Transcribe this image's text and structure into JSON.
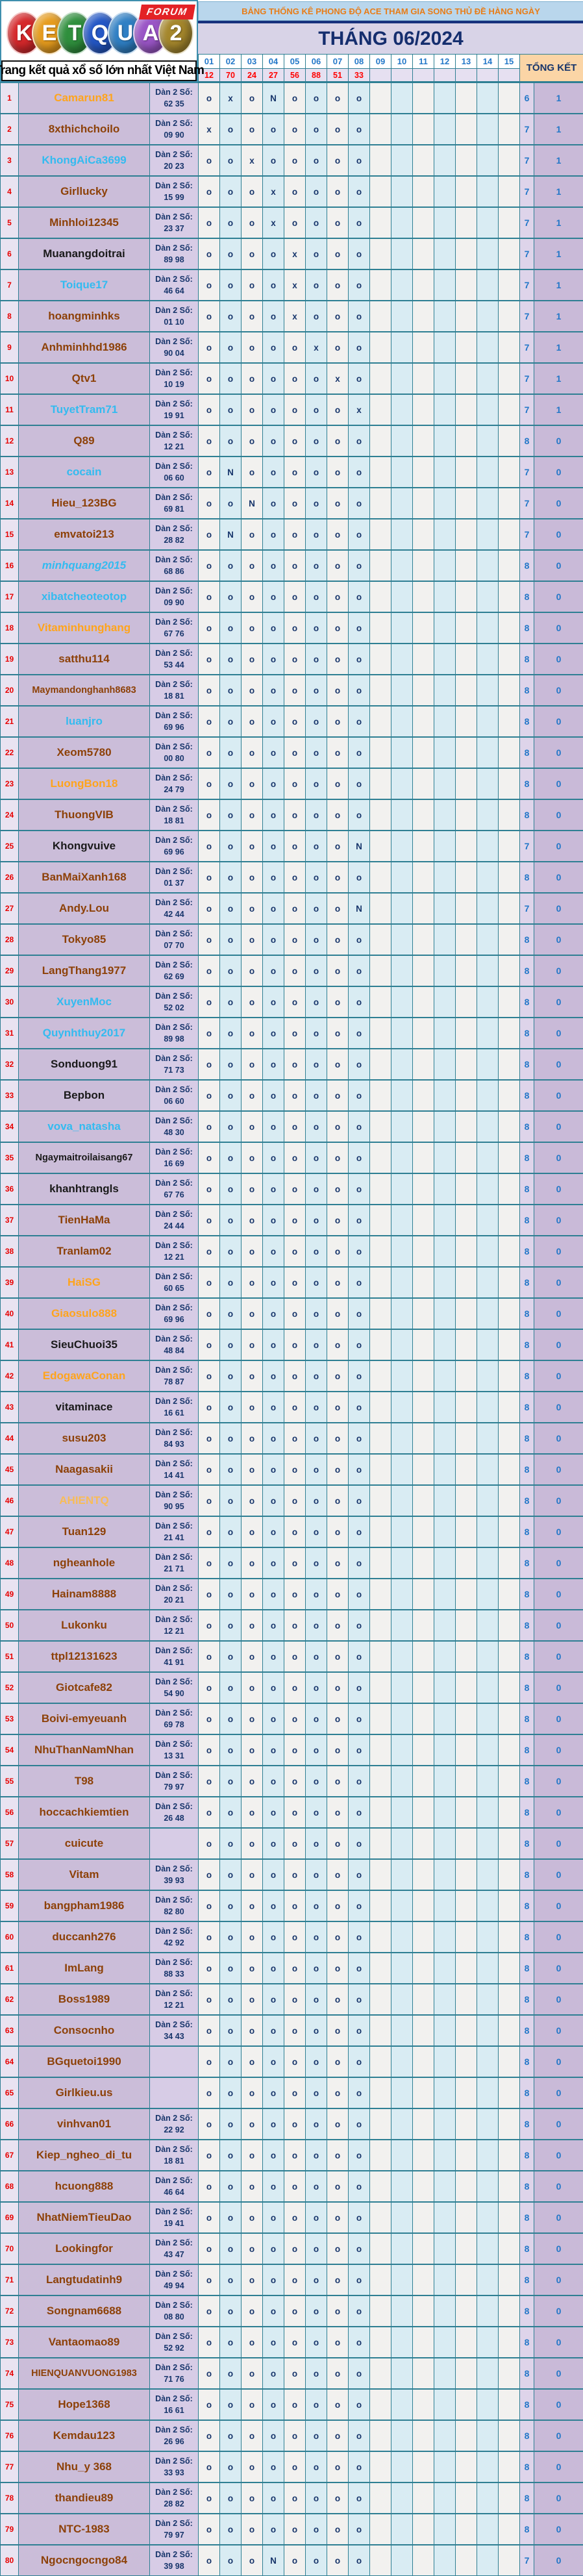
{
  "logo": {
    "letters": [
      {
        "ch": "K",
        "color": "#d5282b"
      },
      {
        "ch": "E",
        "color": "#e69c1e"
      },
      {
        "ch": "T",
        "color": "#2f8f3d"
      },
      {
        "ch": "Q",
        "color": "#2457c5"
      },
      {
        "ch": "U",
        "color": "#2f7fc4"
      },
      {
        "ch": "A",
        "color": "#9a55c6"
      },
      {
        "ch": "2",
        "color": "#a5872c"
      }
    ],
    "badge": "FORUM",
    "tagline": "Trang kết quả xổ số lớn nhất Việt Nam"
  },
  "header": {
    "title": "BẢNG THỐNG KÊ PHONG ĐỘ ACE THAM GIA SONG THỦ ĐỀ HÀNG NGÀY",
    "month": "THÁNG 06/2024",
    "days": [
      "01",
      "02",
      "03",
      "04",
      "05",
      "06",
      "07",
      "08",
      "09",
      "10",
      "11",
      "12",
      "13",
      "14",
      "15"
    ],
    "day_results": [
      "12",
      "70",
      "24",
      "27",
      "56",
      "88",
      "51",
      "33",
      "",
      "",
      "",
      "",
      "",
      "",
      ""
    ],
    "total_header": "TỔNG KẾT"
  },
  "dan_label": "Dàn 2 Số:",
  "colors": {
    "brown": "#8d4108",
    "orange": "#ffa41c",
    "gold": "#f8bc58",
    "cyan": "#33bbf0",
    "black": "#1a1a1a",
    "mark": "#17356b",
    "accent_teal_border": "#2e7f93",
    "total_blue": "#2377c8",
    "result_red": "#ff0000",
    "title_orange": "#e87d18",
    "navy": "#152e6e"
  },
  "rows": [
    {
      "n": 1,
      "user": "Camarun81",
      "color": "orange",
      "dan": "62 35",
      "marks": "oxoNoooo",
      "to": "6",
      "tx": "1"
    },
    {
      "n": 2,
      "user": "8xthichchoilo",
      "color": "brown",
      "dan": "09 90",
      "marks": "xooooooo",
      "to": "7",
      "tx": "1"
    },
    {
      "n": 3,
      "user": "KhongAiCa3699",
      "color": "cyan",
      "dan": "20 23",
      "marks": "ooxooooo",
      "to": "7",
      "tx": "1"
    },
    {
      "n": 4,
      "user": "Girllucky",
      "color": "brown",
      "dan": "15 99",
      "marks": "oooxoooo",
      "to": "7",
      "tx": "1"
    },
    {
      "n": 5,
      "user": "Minhloi12345",
      "color": "brown",
      "dan": "23 37",
      "marks": "oooxoooo",
      "to": "7",
      "tx": "1"
    },
    {
      "n": 6,
      "user": "Muanangdoitrai",
      "color": "black",
      "dan": "89 98",
      "marks": "ooooxooo",
      "to": "7",
      "tx": "1"
    },
    {
      "n": 7,
      "user": "Toique17",
      "color": "cyan",
      "dan": "46 64",
      "marks": "ooooxooo",
      "to": "7",
      "tx": "1"
    },
    {
      "n": 8,
      "user": "hoangminhks",
      "color": "brown",
      "dan": "01 10",
      "marks": "ooooxooo",
      "to": "7",
      "tx": "1"
    },
    {
      "n": 9,
      "user": "Anhminhhd1986",
      "color": "brown",
      "dan": "90 04",
      "marks": "oooooxoo",
      "to": "7",
      "tx": "1"
    },
    {
      "n": 10,
      "user": "Qtv1",
      "color": "brown",
      "dan": "10 19",
      "marks": "ooooooxo",
      "to": "7",
      "tx": "1"
    },
    {
      "n": 11,
      "user": "TuyetTram71",
      "color": "cyan",
      "dan": "19 91",
      "marks": "ooooooox",
      "to": "7",
      "tx": "1"
    },
    {
      "n": 12,
      "user": "Q89",
      "color": "brown",
      "dan": "12 21",
      "marks": "oooooooo",
      "to": "8",
      "tx": "0"
    },
    {
      "n": 13,
      "user": "cocain",
      "color": "cyan",
      "dan": "06 60",
      "marks": "oNoooooo",
      "to": "7",
      "tx": "0"
    },
    {
      "n": 14,
      "user": "Hieu_123BG",
      "color": "brown",
      "dan": "69 81",
      "marks": "ooNooooo",
      "to": "7",
      "tx": "0"
    },
    {
      "n": 15,
      "user": "emvatoi213",
      "color": "brown",
      "dan": "28 82",
      "marks": "oNoooooo",
      "to": "7",
      "tx": "0"
    },
    {
      "n": 16,
      "user": "minhquang2015",
      "color": "cyan",
      "italic": true,
      "dan": "68 86",
      "marks": "oooooooo",
      "to": "8",
      "tx": "0"
    },
    {
      "n": 17,
      "user": "xibatcheoteotop",
      "color": "cyan",
      "dan": "09 90",
      "marks": "oooooooo",
      "to": "8",
      "tx": "0"
    },
    {
      "n": 18,
      "user": "Vitaminhunghang",
      "color": "orange",
      "dan": "67 76",
      "marks": "oooooooo",
      "to": "8",
      "tx": "0"
    },
    {
      "n": 19,
      "user": "satthu114",
      "color": "brown",
      "dan": "53 44",
      "marks": "oooooooo",
      "to": "8",
      "tx": "0"
    },
    {
      "n": 20,
      "user": "Maymandonghanh8683",
      "color": "brown",
      "dan": "18 81",
      "marks": "oooooooo",
      "to": "8",
      "tx": "0"
    },
    {
      "n": 21,
      "user": "luanjro",
      "color": "cyan",
      "dan": "69 96",
      "marks": "oooooooo",
      "to": "8",
      "tx": "0"
    },
    {
      "n": 22,
      "user": "Xeom5780",
      "color": "brown",
      "dan": "00 80",
      "marks": "oooooooo",
      "to": "8",
      "tx": "0"
    },
    {
      "n": 23,
      "user": "LuongBon18",
      "color": "orange",
      "dan": "24 79",
      "marks": "oooooooo",
      "to": "8",
      "tx": "0"
    },
    {
      "n": 24,
      "user": "ThuongVIB",
      "color": "brown",
      "dan": "18 81",
      "marks": "oooooooo",
      "to": "8",
      "tx": "0"
    },
    {
      "n": 25,
      "user": "Khongvuive",
      "color": "black",
      "dan": "69 96",
      "marks": "oooooooN",
      "to": "7",
      "tx": "0"
    },
    {
      "n": 26,
      "user": "BanMaiXanh168",
      "color": "brown",
      "dan": "01 37",
      "marks": "oooooooo",
      "to": "8",
      "tx": "0"
    },
    {
      "n": 27,
      "user": "Andy.Lou",
      "color": "brown",
      "dan": "42 44",
      "marks": "oooooooN",
      "to": "7",
      "tx": "0"
    },
    {
      "n": 28,
      "user": "Tokyo85",
      "color": "brown",
      "dan": "07 70",
      "marks": "oooooooo",
      "to": "8",
      "tx": "0"
    },
    {
      "n": 29,
      "user": "LangThang1977",
      "color": "brown",
      "dan": "62 69",
      "marks": "oooooooo",
      "to": "8",
      "tx": "0"
    },
    {
      "n": 30,
      "user": "XuyenMoc",
      "color": "cyan",
      "dan": "52 02",
      "marks": "oooooooo",
      "to": "8",
      "tx": "0"
    },
    {
      "n": 31,
      "user": "Quynhthuy2017",
      "color": "cyan",
      "dan": "89 98",
      "marks": "oooooooo",
      "to": "8",
      "tx": "0"
    },
    {
      "n": 32,
      "user": "Sonduong91",
      "color": "black",
      "dan": "71 73",
      "marks": "oooooooo",
      "to": "8",
      "tx": "0"
    },
    {
      "n": 33,
      "user": "Bepbon",
      "color": "black",
      "dan": "06 60",
      "marks": "oooooooo",
      "to": "8",
      "tx": "0"
    },
    {
      "n": 34,
      "user": "vova_natasha",
      "color": "cyan",
      "dan": "48 30",
      "marks": "oooooooo",
      "to": "8",
      "tx": "0"
    },
    {
      "n": 35,
      "user": "Ngaymaitroilaisang67",
      "color": "black",
      "dan": "16 69",
      "marks": "oooooooo",
      "to": "8",
      "tx": "0"
    },
    {
      "n": 36,
      "user": "khanhtrangls",
      "color": "black",
      "dan": "67 76",
      "marks": "oooooooo",
      "to": "8",
      "tx": "0"
    },
    {
      "n": 37,
      "user": "TienHaMa",
      "color": "brown",
      "dan": "24 44",
      "marks": "oooooooo",
      "to": "8",
      "tx": "0"
    },
    {
      "n": 38,
      "user": "Tranlam02",
      "color": "brown",
      "dan": "12 21",
      "marks": "oooooooo",
      "to": "8",
      "tx": "0"
    },
    {
      "n": 39,
      "user": "HaiSG",
      "color": "orange",
      "dan": "60 65",
      "marks": "oooooooo",
      "to": "8",
      "tx": "0"
    },
    {
      "n": 40,
      "user": "Giaosulo888",
      "color": "orange",
      "dan": "69 96",
      "marks": "oooooooo",
      "to": "8",
      "tx": "0"
    },
    {
      "n": 41,
      "user": "SieuChuoi35",
      "color": "black",
      "dan": "48 84",
      "marks": "oooooooo",
      "to": "8",
      "tx": "0"
    },
    {
      "n": 42,
      "user": "EdogawaConan",
      "color": "orange",
      "dan": "78 87",
      "marks": "oooooooo",
      "to": "8",
      "tx": "0"
    },
    {
      "n": 43,
      "user": "vitaminace",
      "color": "black",
      "dan": "16 61",
      "marks": "oooooooo",
      "to": "8",
      "tx": "0"
    },
    {
      "n": 44,
      "user": "susu203",
      "color": "brown",
      "dan": "84 93",
      "marks": "oooooooo",
      "to": "8",
      "tx": "0"
    },
    {
      "n": 45,
      "user": "Naagasakii",
      "color": "brown",
      "dan": "14 41",
      "marks": "oooooooo",
      "to": "8",
      "tx": "0"
    },
    {
      "n": 46,
      "user": "AHIENTQ",
      "color": "gold",
      "dan": "90 95",
      "marks": "oooooooo",
      "to": "8",
      "tx": "0"
    },
    {
      "n": 47,
      "user": "Tuan129",
      "color": "brown",
      "dan": "21 41",
      "marks": "oooooooo",
      "to": "8",
      "tx": "0"
    },
    {
      "n": 48,
      "user": "ngheanhole",
      "color": "brown",
      "dan": "21 71",
      "marks": "oooooooo",
      "to": "8",
      "tx": "0"
    },
    {
      "n": 49,
      "user": "Hainam8888",
      "color": "brown",
      "dan": "20 21",
      "marks": "oooooooo",
      "to": "8",
      "tx": "0"
    },
    {
      "n": 50,
      "user": "Lukonku",
      "color": "brown",
      "dan": "12 21",
      "marks": "oooooooo",
      "to": "8",
      "tx": "0"
    },
    {
      "n": 51,
      "user": "ttpl12131623",
      "color": "brown",
      "dan": "41 91",
      "marks": "oooooooo",
      "to": "8",
      "tx": "0"
    },
    {
      "n": 52,
      "user": "Giotcafe82",
      "color": "brown",
      "dan": "54 90",
      "marks": "oooooooo",
      "to": "8",
      "tx": "0"
    },
    {
      "n": 53,
      "user": "Boivi-emyeuanh",
      "color": "brown",
      "dan": "69 78",
      "marks": "oooooooo",
      "to": "8",
      "tx": "0"
    },
    {
      "n": 54,
      "user": "NhuThanNamNhan",
      "color": "brown",
      "dan": "13 31",
      "marks": "oooooooo",
      "to": "8",
      "tx": "0"
    },
    {
      "n": 55,
      "user": "T98",
      "color": "brown",
      "dan": "79 97",
      "marks": "oooooooo",
      "to": "8",
      "tx": "0"
    },
    {
      "n": 56,
      "user": "hoccachkiemtien",
      "color": "brown",
      "dan": "26 48",
      "marks": "oooooooo",
      "to": "8",
      "tx": "0"
    },
    {
      "n": 57,
      "user": "cuicute",
      "color": "brown",
      "dan": "",
      "marks": "oooooooo",
      "to": "8",
      "tx": "0"
    },
    {
      "n": 58,
      "user": "Vitam",
      "color": "brown",
      "dan": "39 93",
      "marks": "oooooooo",
      "to": "8",
      "tx": "0"
    },
    {
      "n": 59,
      "user": "bangpham1986",
      "color": "brown",
      "dan": "82 80",
      "marks": "oooooooo",
      "to": "8",
      "tx": "0"
    },
    {
      "n": 60,
      "user": "duccanh276",
      "color": "brown",
      "dan": "42 92",
      "marks": "oooooooo",
      "to": "8",
      "tx": "0"
    },
    {
      "n": 61,
      "user": "ImLang",
      "color": "brown",
      "dan": "88 33",
      "marks": "oooooooo",
      "to": "8",
      "tx": "0"
    },
    {
      "n": 62,
      "user": "Boss1989",
      "color": "brown",
      "dan": "12 21",
      "marks": "oooooooo",
      "to": "8",
      "tx": "0"
    },
    {
      "n": 63,
      "user": "Consocnho",
      "color": "brown",
      "dan": "34 43",
      "marks": "oooooooo",
      "to": "8",
      "tx": "0"
    },
    {
      "n": 64,
      "user": "BGquetoi1990",
      "color": "brown",
      "dan": "",
      "marks": "oooooooo",
      "to": "8",
      "tx": "0"
    },
    {
      "n": 65,
      "user": "Girlkieu.us",
      "color": "brown",
      "dan": "",
      "marks": "oooooooo",
      "to": "8",
      "tx": "0"
    },
    {
      "n": 66,
      "user": "vinhvan01",
      "color": "brown",
      "dan": "22 92",
      "marks": "oooooooo",
      "to": "8",
      "tx": "0"
    },
    {
      "n": 67,
      "user": "Kiep_ngheo_di_tu",
      "color": "brown",
      "dan": "18 81",
      "marks": "oooooooo",
      "to": "8",
      "tx": "0"
    },
    {
      "n": 68,
      "user": "hcuong888",
      "color": "brown",
      "dan": "46 64",
      "marks": "oooooooo",
      "to": "8",
      "tx": "0"
    },
    {
      "n": 69,
      "user": "NhatNiemTieuDao",
      "color": "brown",
      "dan": "19 41",
      "marks": "oooooooo",
      "to": "8",
      "tx": "0"
    },
    {
      "n": 70,
      "user": "Lookingfor",
      "color": "brown",
      "dan": "43 47",
      "marks": "oooooooo",
      "to": "8",
      "tx": "0"
    },
    {
      "n": 71,
      "user": "Langtudatinh9",
      "color": "brown",
      "dan": "49 94",
      "marks": "oooooooo",
      "to": "8",
      "tx": "0"
    },
    {
      "n": 72,
      "user": "Songnam6688",
      "color": "brown",
      "dan": "08 80",
      "marks": "oooooooo",
      "to": "8",
      "tx": "0"
    },
    {
      "n": 73,
      "user": "Vantaomao89",
      "color": "brown",
      "dan": "52 92",
      "marks": "oooooooo",
      "to": "8",
      "tx": "0"
    },
    {
      "n": 74,
      "user": "HIENQUANVUONG1983",
      "color": "brown",
      "dan": "71 76",
      "marks": "oooooooo",
      "to": "8",
      "tx": "0"
    },
    {
      "n": 75,
      "user": "Hope1368",
      "color": "brown",
      "dan": "16 61",
      "marks": "oooooooo",
      "to": "8",
      "tx": "0"
    },
    {
      "n": 76,
      "user": "Kemdau123",
      "color": "brown",
      "dan": "26 96",
      "marks": "oooooooo",
      "to": "8",
      "tx": "0"
    },
    {
      "n": 77,
      "user": "Nhu_y 368",
      "color": "brown",
      "dan": "33 93",
      "marks": "oooooooo",
      "to": "8",
      "tx": "0"
    },
    {
      "n": 78,
      "user": "thandieu89",
      "color": "brown",
      "dan": "28 82",
      "marks": "oooooooo",
      "to": "8",
      "tx": "0"
    },
    {
      "n": 79,
      "user": "NTC-1983",
      "color": "brown",
      "dan": "79 97",
      "marks": "oooooooo",
      "to": "8",
      "tx": "0"
    },
    {
      "n": 80,
      "user": "Ngocngocngo84",
      "color": "brown",
      "dan": "39 98",
      "marks": "oooNoooo",
      "to": "7",
      "tx": "0"
    }
  ]
}
